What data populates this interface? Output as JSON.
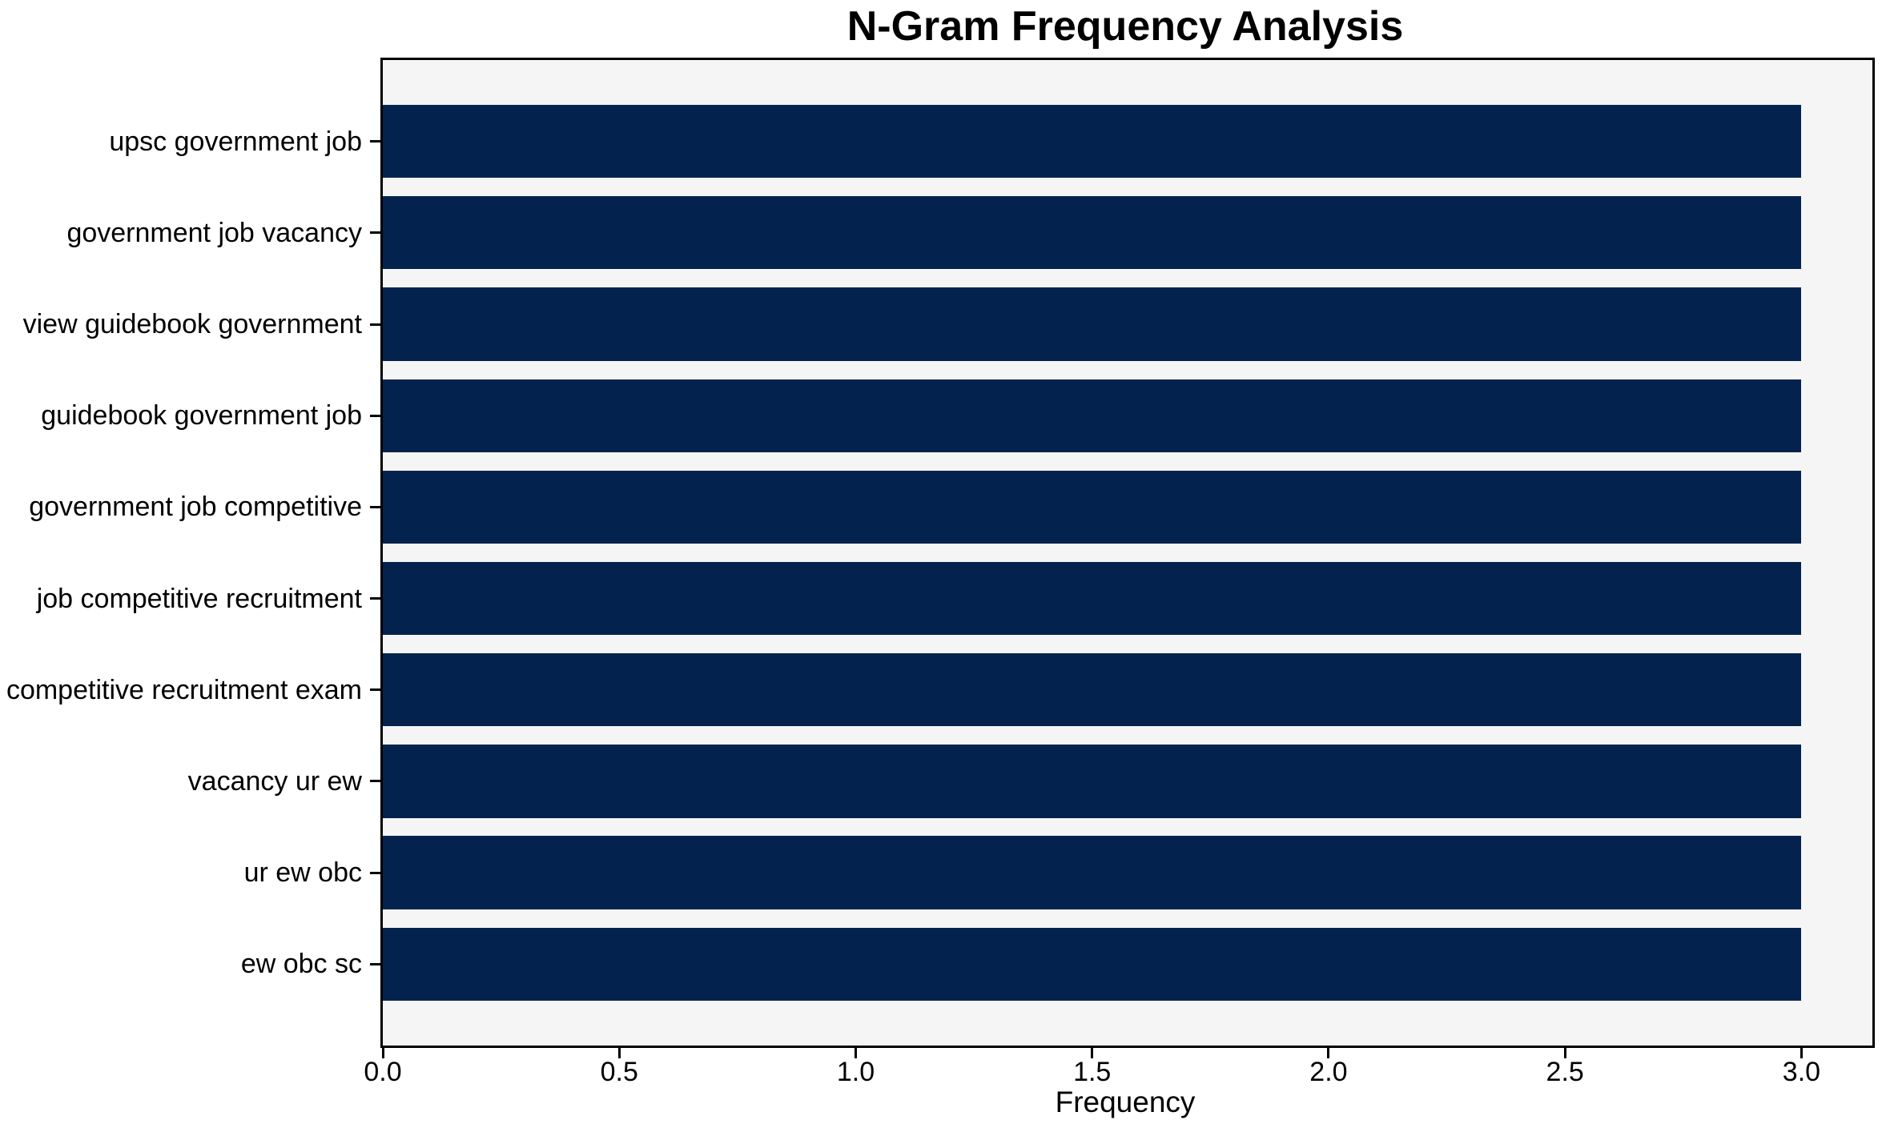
{
  "chart_data": {
    "type": "bar",
    "orientation": "horizontal",
    "title": "N-Gram Frequency Analysis",
    "xlabel": "Frequency",
    "ylabel": "",
    "categories": [
      "upsc government job",
      "government job vacancy",
      "view guidebook government",
      "guidebook government job",
      "government job competitive",
      "job competitive recruitment",
      "competitive recruitment exam",
      "vacancy ur ew",
      "ur ew obc",
      "ew obc sc"
    ],
    "values": [
      3,
      3,
      3,
      3,
      3,
      3,
      3,
      3,
      3,
      3
    ],
    "xticks": [
      0.0,
      0.5,
      1.0,
      1.5,
      2.0,
      2.5,
      3.0
    ],
    "xtick_labels": [
      "0.0",
      "0.5",
      "1.0",
      "1.5",
      "2.0",
      "2.5",
      "3.0"
    ],
    "xlim": [
      0,
      3.15
    ],
    "bar_height_fraction": 0.8,
    "grid": false,
    "legend": "none",
    "colors": {
      "bar": "#03234e",
      "plot_background": "#f5f5f6",
      "figure_background": "#ffffff",
      "spine": "#000000",
      "text": "#000000"
    }
  }
}
